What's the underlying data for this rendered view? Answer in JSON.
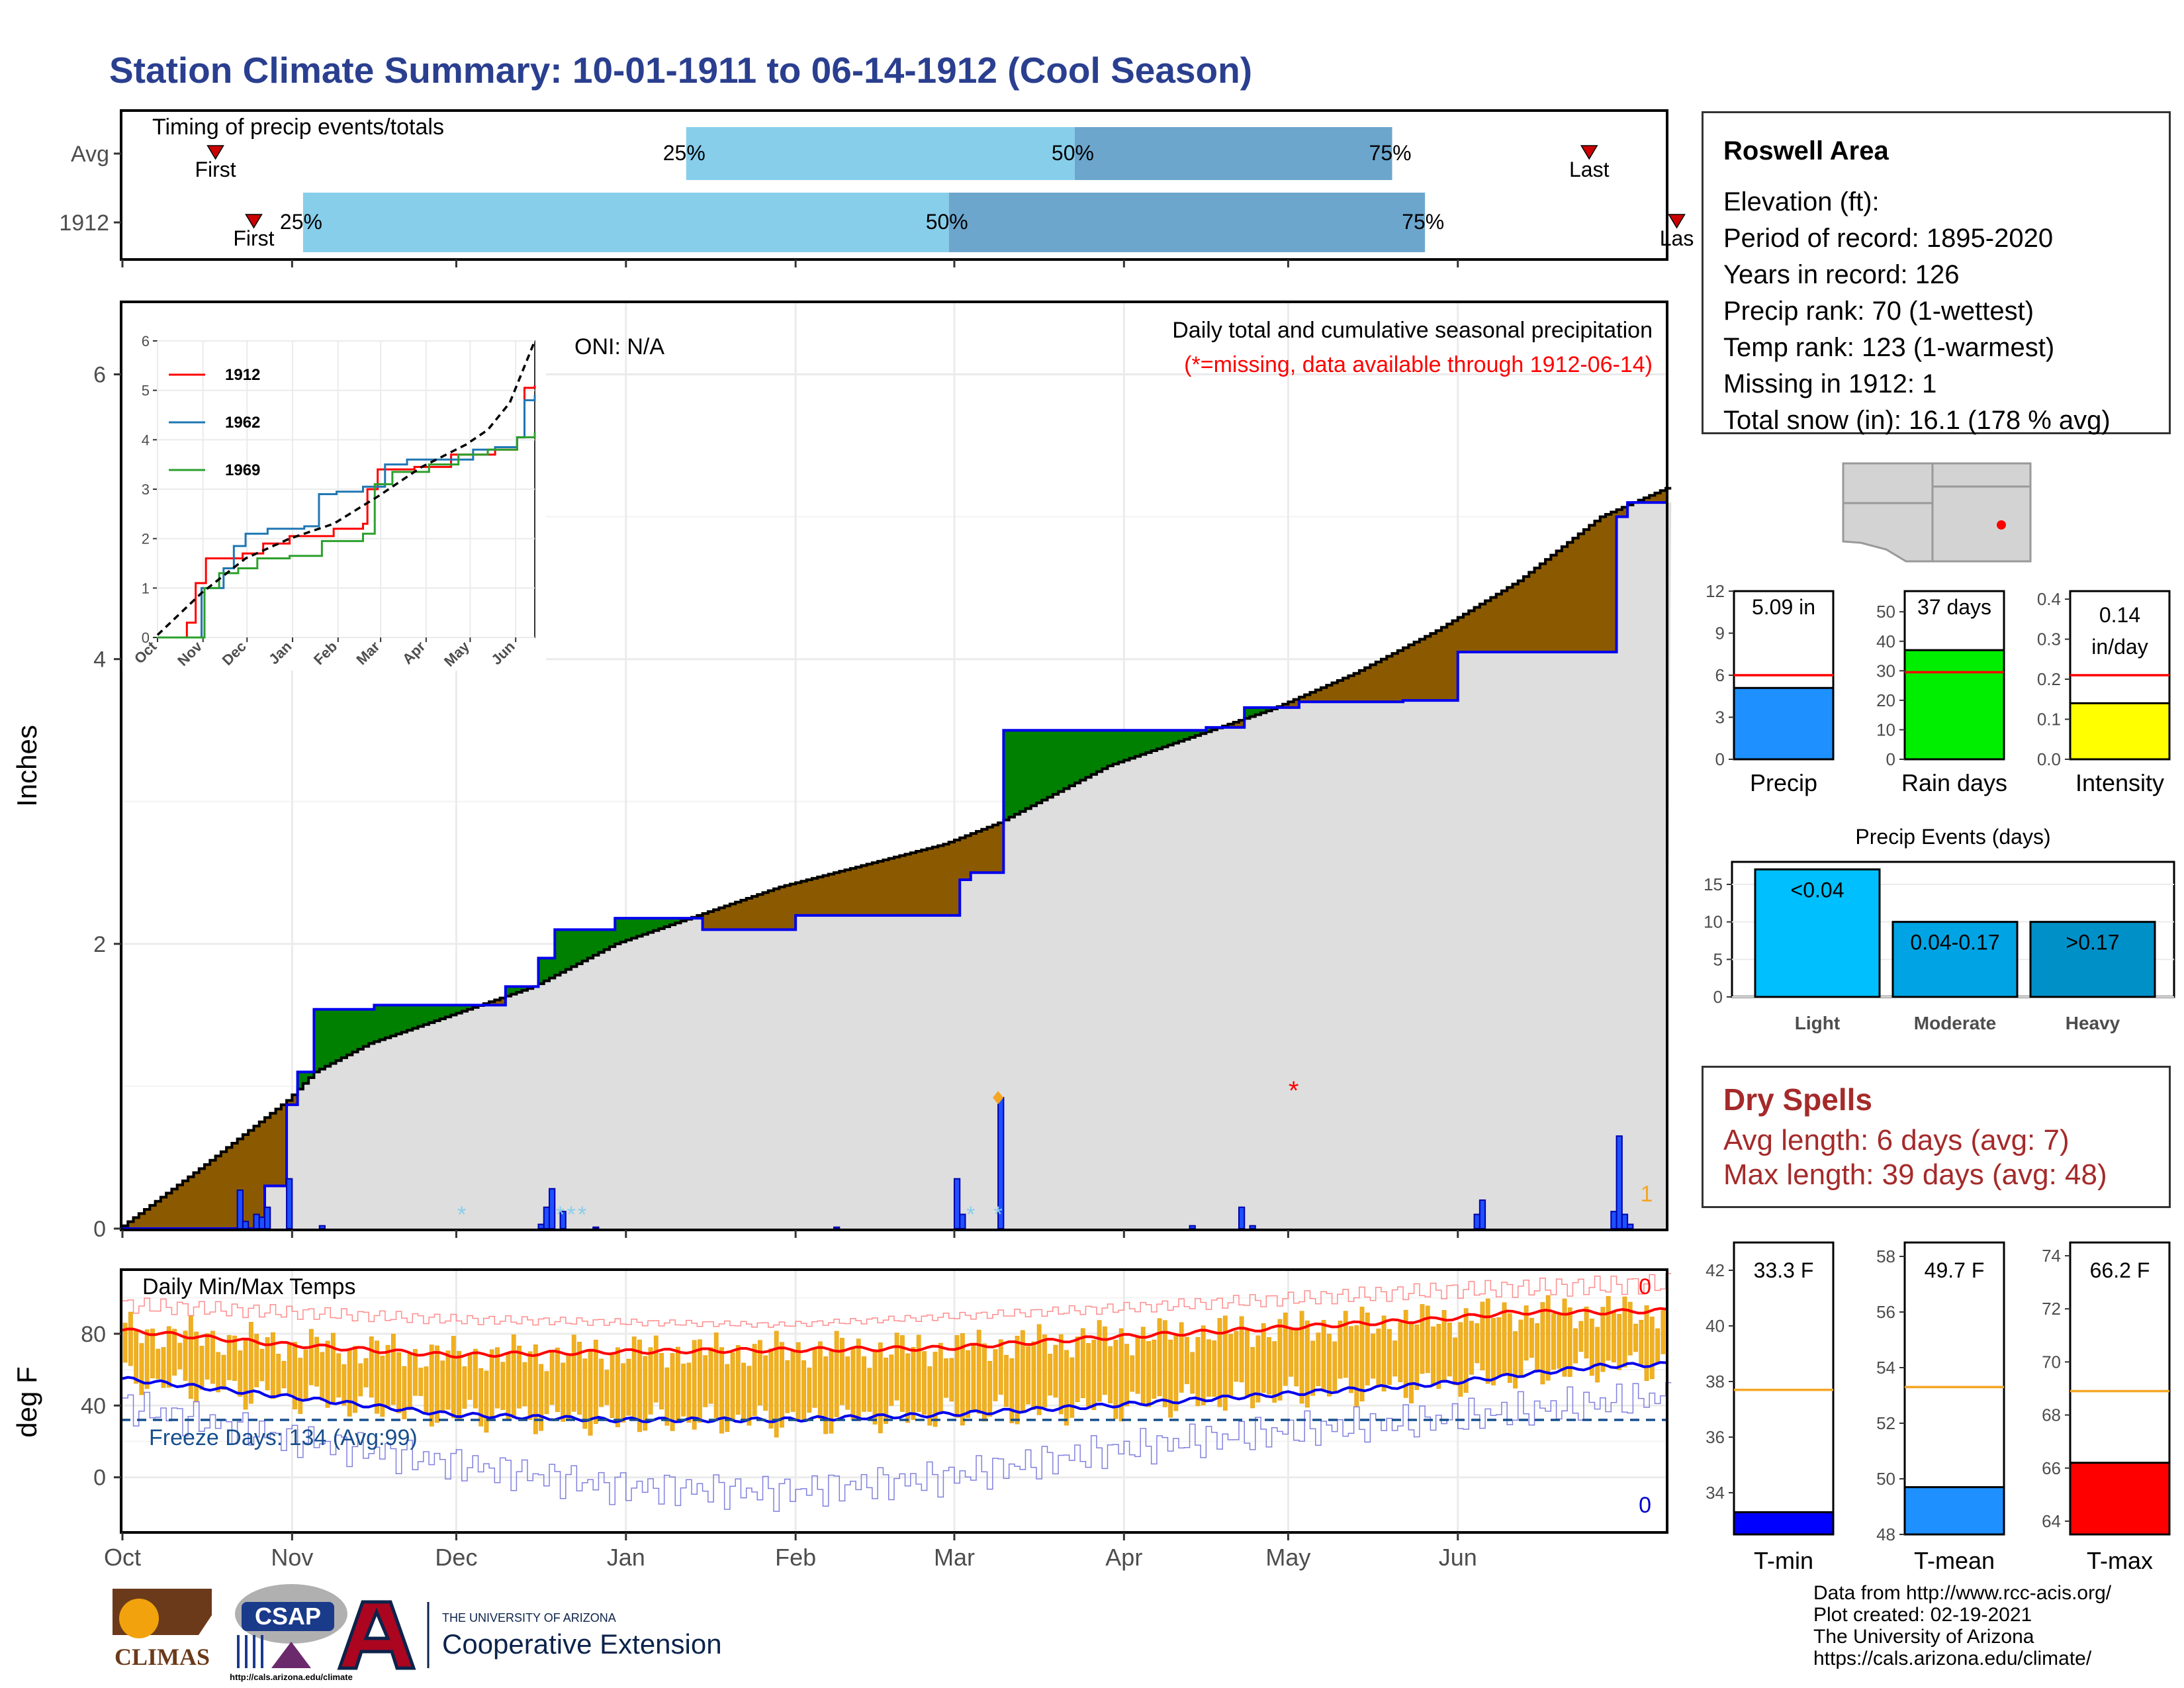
{
  "title": "Station Climate Summary: 10-01-1911 to 06-14-1912 (Cool Season)",
  "timing": {
    "label": "Timing of precip events/totals",
    "rows": [
      {
        "label": "Avg",
        "first": "First",
        "last": "Last",
        "p25": "25%",
        "p50": "50%",
        "p75": "75%"
      },
      {
        "label": "1912",
        "first": "First",
        "last": "Las",
        "p25": "25%",
        "p50": "50%",
        "p75": "75%"
      }
    ]
  },
  "precip_panel": {
    "ylabel": "Inches",
    "oni": "ONI: N/A",
    "desc": "Daily total and cumulative seasonal precipitation",
    "missing_note": "(*=missing, data available through 1912-06-14)",
    "missing_marker": "*",
    "missing_count_label": "1",
    "yticks": [
      "0",
      "2",
      "4",
      "6"
    ]
  },
  "inset": {
    "legend": [
      "1912",
      "1962",
      "1969"
    ],
    "yticks": [
      "0",
      "1",
      "2",
      "3",
      "4",
      "5",
      "6"
    ],
    "xticks": [
      "Oct",
      "Nov",
      "Dec",
      "Jan",
      "Feb",
      "Mar",
      "Apr",
      "May",
      "Jun"
    ]
  },
  "temp_panel": {
    "ylabel": "deg F",
    "label": "Daily Min/Max Temps",
    "freeze": "Freeze Days: 134 (Avg:99)",
    "max_count": "0",
    "min_count": "0",
    "yticks": [
      "0",
      "40",
      "80"
    ]
  },
  "month_ticks": [
    "Oct",
    "Nov",
    "Dec",
    "Jan",
    "Feb",
    "Mar",
    "Apr",
    "May",
    "Jun"
  ],
  "station": {
    "name": "Roswell Area",
    "lines": [
      "Elevation (ft):",
      "Period of record: 1895-2020",
      "Years in record: 126",
      "Precip rank: 70 (1-wettest)",
      "Temp rank: 123 (1-warmest)",
      "Missing in 1912: 1",
      "Total snow (in): 16.1 (178 % avg)"
    ]
  },
  "mini_bars": [
    {
      "label": "Precip",
      "value_label": "5.09 in",
      "value": 5.09,
      "avg": 6.0,
      "ymax": 12,
      "yticks": [
        "0",
        "3",
        "6",
        "9",
        "12"
      ],
      "color": "#1e90ff"
    },
    {
      "label": "Rain days",
      "value_label": "37 days",
      "value": 37,
      "avg": 29.5,
      "ymax": 57,
      "yticks": [
        "0",
        "10",
        "20",
        "30",
        "40",
        "50"
      ],
      "color": "#00ee00"
    },
    {
      "label": "Intensity",
      "value_label": "0.14 in/day",
      "value": 0.14,
      "avg": 0.21,
      "ymax": 0.42,
      "yticks": [
        "0.0",
        "0.1",
        "0.2",
        "0.3",
        "0.4"
      ],
      "color": "#ffff00"
    }
  ],
  "events": {
    "title": "Precip Events (days)",
    "categories": [
      "Light",
      "Moderate",
      "Heavy"
    ],
    "labels": [
      "<0.04",
      "0.04-0.17",
      ">0.17"
    ],
    "values": [
      17,
      10,
      10
    ],
    "yticks": [
      "0",
      "5",
      "10",
      "15"
    ],
    "colors": [
      "#00bfff",
      "#00a4e4",
      "#0090c8"
    ]
  },
  "dry_spells": {
    "title": "Dry Spells",
    "avg": "Avg length: 6 days (avg: 7)",
    "max": "Max length: 39 days (avg: 48)"
  },
  "temp_bars": [
    {
      "label": "T-min",
      "value_label": "33.3 F",
      "value": 33.3,
      "avg": 37.7,
      "ymin": 32.5,
      "ymax": 43,
      "yticks": [
        "34",
        "36",
        "38",
        "40",
        "42"
      ],
      "color": "#0000ff"
    },
    {
      "label": "T-mean",
      "value_label": "49.7 F",
      "value": 49.7,
      "avg": 53.3,
      "ymin": 48,
      "ymax": 58.5,
      "yticks": [
        "48",
        "50",
        "52",
        "54",
        "56",
        "58"
      ],
      "color": "#1e90ff"
    },
    {
      "label": "T-max",
      "value_label": "66.2 F",
      "value": 66.2,
      "avg": 68.9,
      "ymin": 63.5,
      "ymax": 74.5,
      "yticks": [
        "64",
        "66",
        "68",
        "70",
        "72",
        "74"
      ],
      "color": "#ff0000"
    }
  ],
  "footer": [
    "Data from http://www.rcc-acis.org/",
    "Plot created: 02-19-2021",
    "The University of Arizona",
    "https://cals.arizona.edu/climate/"
  ],
  "logos": {
    "climas": "CLIMAS",
    "csap": "CSAP",
    "csap_url": "http://cals.arizona.edu/climate",
    "ua_small": "THE UNIVERSITY OF ARIZONA",
    "ua_big": "Cooperative Extension"
  },
  "chart_data": [
    {
      "type": "bar",
      "name": "timing",
      "series": [
        {
          "name": "Avg",
          "first_day": 17,
          "p25_day": 103,
          "p50_day": 174,
          "p75_day": 232,
          "last_day": 268
        },
        {
          "name": "1912",
          "first_day": 24,
          "p25_day": 33,
          "p50_day": 151,
          "p75_day": 238,
          "last_day": 284
        }
      ],
      "xlim_days": [
        0,
        282
      ]
    },
    {
      "type": "area",
      "name": "cumulative precipitation",
      "x_unit": "day of season from 1911-10-01",
      "ylim": [
        0,
        6.5
      ],
      "avg_cumulative": [
        [
          0,
          0.02
        ],
        [
          15,
          0.45
        ],
        [
          30,
          0.9
        ],
        [
          35,
          1.1
        ],
        [
          45,
          1.3
        ],
        [
          60,
          1.5
        ],
        [
          75,
          1.7
        ],
        [
          90,
          2.0
        ],
        [
          105,
          2.2
        ],
        [
          120,
          2.4
        ],
        [
          135,
          2.55
        ],
        [
          150,
          2.7
        ],
        [
          160,
          2.85
        ],
        [
          170,
          3.05
        ],
        [
          180,
          3.25
        ],
        [
          195,
          3.45
        ],
        [
          210,
          3.65
        ],
        [
          225,
          3.9
        ],
        [
          240,
          4.2
        ],
        [
          255,
          4.55
        ],
        [
          270,
          5.0
        ],
        [
          282,
          5.2
        ]
      ],
      "obs_1912_cumulative": [
        [
          0,
          0
        ],
        [
          21,
          0
        ],
        [
          26,
          0.3
        ],
        [
          30,
          0.87
        ],
        [
          32,
          1.1
        ],
        [
          35,
          1.54
        ],
        [
          46,
          1.57
        ],
        [
          58,
          1.57
        ],
        [
          70,
          1.7
        ],
        [
          76,
          1.9
        ],
        [
          79,
          2.1
        ],
        [
          90,
          2.18
        ],
        [
          106,
          2.1
        ],
        [
          123,
          2.2
        ],
        [
          150,
          2.2
        ],
        [
          153,
          2.45
        ],
        [
          155,
          2.5
        ],
        [
          161,
          3.5
        ],
        [
          198,
          3.52
        ],
        [
          205,
          3.66
        ],
        [
          215,
          3.7
        ],
        [
          234,
          3.71
        ],
        [
          244,
          4.05
        ],
        [
          265,
          4.05
        ],
        [
          270,
          4.05
        ],
        [
          273,
          5.0
        ],
        [
          275,
          5.1
        ],
        [
          282,
          5.1
        ]
      ],
      "daily_precip": [
        [
          21,
          0.27
        ],
        [
          22,
          0.05
        ],
        [
          24,
          0.1
        ],
        [
          25,
          0.08
        ],
        [
          26,
          0.15
        ],
        [
          30,
          0.35
        ],
        [
          36,
          0.02
        ],
        [
          76,
          0.03
        ],
        [
          77,
          0.15
        ],
        [
          78,
          0.28
        ],
        [
          80,
          0.12
        ],
        [
          86,
          0.01
        ],
        [
          130,
          0.01
        ],
        [
          152,
          0.35
        ],
        [
          153,
          0.1
        ],
        [
          160,
          0.92
        ],
        [
          195,
          0.02
        ],
        [
          204,
          0.15
        ],
        [
          206,
          0.02
        ],
        [
          247,
          0.1
        ],
        [
          248,
          0.2
        ],
        [
          272,
          0.12
        ],
        [
          273,
          0.65
        ],
        [
          274,
          0.1
        ],
        [
          275,
          0.03
        ]
      ],
      "missing_days": [
        [
          214,
          1.0
        ]
      ]
    },
    {
      "type": "line",
      "name": "inset cumulative comparisons",
      "xlim_days": [
        0,
        257
      ],
      "ylim": [
        0,
        6
      ],
      "series": [
        {
          "name": "1912",
          "points": [
            [
              0,
              0
            ],
            [
              20,
              0.3
            ],
            [
              26,
              1.1
            ],
            [
              33,
              1.6
            ],
            [
              45,
              1.6
            ],
            [
              58,
              1.7
            ],
            [
              72,
              1.9
            ],
            [
              90,
              2.05
            ],
            [
              120,
              2.2
            ],
            [
              140,
              2.3
            ],
            [
              143,
              3.0
            ],
            [
              150,
              3.4
            ],
            [
              175,
              3.45
            ],
            [
              200,
              3.7
            ],
            [
              230,
              3.8
            ],
            [
              245,
              4.05
            ],
            [
              250,
              5.05
            ],
            [
              257,
              5.1
            ]
          ]
        },
        {
          "name": "1962",
          "points": [
            [
              0,
              0
            ],
            [
              27,
              0
            ],
            [
              30,
              1.0
            ],
            [
              45,
              1.4
            ],
            [
              52,
              1.85
            ],
            [
              60,
              2.1
            ],
            [
              75,
              2.2
            ],
            [
              100,
              2.25
            ],
            [
              110,
              2.9
            ],
            [
              122,
              2.95
            ],
            [
              140,
              3.05
            ],
            [
              155,
              3.5
            ],
            [
              170,
              3.6
            ],
            [
              200,
              3.6
            ],
            [
              215,
              3.8
            ],
            [
              230,
              3.85
            ],
            [
              245,
              4.05
            ],
            [
              250,
              4.8
            ],
            [
              257,
              4.9
            ]
          ]
        },
        {
          "name": "1969",
          "points": [
            [
              0,
              0
            ],
            [
              20,
              0
            ],
            [
              32,
              1.0
            ],
            [
              42,
              1.3
            ],
            [
              55,
              1.4
            ],
            [
              68,
              1.6
            ],
            [
              90,
              1.65
            ],
            [
              112,
              1.95
            ],
            [
              140,
              2.1
            ],
            [
              148,
              3.1
            ],
            [
              160,
              3.35
            ],
            [
              185,
              3.5
            ],
            [
              205,
              3.7
            ],
            [
              225,
              3.8
            ],
            [
              245,
              4.05
            ],
            [
              257,
              4.15
            ]
          ]
        },
        {
          "name": "",
          "points": [
            [
              0,
              0.05
            ],
            [
              30,
              0.9
            ],
            [
              60,
              1.6
            ],
            [
              90,
              2.0
            ],
            [
              120,
              2.3
            ],
            [
              150,
              2.85
            ],
            [
              180,
              3.45
            ],
            [
              210,
              3.9
            ],
            [
              225,
              4.2
            ],
            [
              240,
              4.75
            ],
            [
              257,
              6.0
            ]
          ]
        }
      ]
    },
    {
      "type": "line",
      "name": "daily temperatures",
      "ylim": [
        -30,
        115
      ],
      "series": [
        {
          "name": "normal max",
          "points": [
            [
              0,
              82
            ],
            [
              30,
              74
            ],
            [
              60,
              68
            ],
            [
              90,
              70
            ],
            [
              120,
              71
            ],
            [
              150,
              72
            ],
            [
              180,
              78
            ],
            [
              210,
              83
            ],
            [
              240,
              88
            ],
            [
              255,
              92
            ],
            [
              270,
              92
            ],
            [
              282,
              93
            ]
          ]
        },
        {
          "name": "normal min",
          "points": [
            [
              0,
              55
            ],
            [
              30,
              45
            ],
            [
              60,
              35
            ],
            [
              90,
              32
            ],
            [
              120,
              32
            ],
            [
              150,
              35
            ],
            [
              180,
              40
            ],
            [
              210,
              46
            ],
            [
              240,
              52
            ],
            [
              255,
              57
            ],
            [
              270,
              62
            ],
            [
              282,
              63
            ]
          ]
        },
        {
          "name": "record max",
          "points": [
            [
              0,
              96
            ],
            [
              60,
              88
            ],
            [
              120,
              85
            ],
            [
              180,
              94
            ],
            [
              240,
              104
            ],
            [
              282,
              108
            ]
          ]
        },
        {
          "name": "record min",
          "points": [
            [
              0,
              40
            ],
            [
              30,
              22
            ],
            [
              60,
              8
            ],
            [
              90,
              -5
            ],
            [
              120,
              -8
            ],
            [
              150,
              0
            ],
            [
              180,
              15
            ],
            [
              210,
              25
            ],
            [
              240,
              32
            ],
            [
              282,
              45
            ]
          ]
        },
        {
          "name": "freeze line",
          "points": [
            [
              0,
              32
            ],
            [
              282,
              32
            ]
          ]
        }
      ]
    }
  ]
}
